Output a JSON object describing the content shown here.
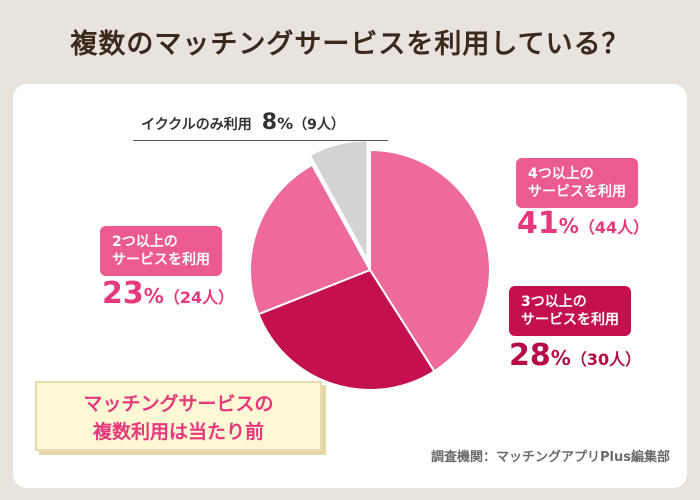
{
  "title": "複数のマッチングサービスを利用している？",
  "chart_data": {
    "type": "pie",
    "slices": [
      {
        "label_line1": "4つ以上の",
        "label_line2": "サービスを利用",
        "value": 41,
        "count": 44,
        "color": "#ee6a9b"
      },
      {
        "label_line1": "3つ以上の",
        "label_line2": "サービスを利用",
        "value": 28,
        "count": 30,
        "color": "#c4104e"
      },
      {
        "label_line1": "2つ以上の",
        "label_line2": "サービスを利用",
        "value": 23,
        "count": 24,
        "color": "#ee6a9b"
      },
      {
        "label": "イククルのみ利用",
        "value": 8,
        "count": 9,
        "color": "#d3d3d3",
        "exploded": true
      }
    ],
    "percent_suffix": "%",
    "count_prefix": "（",
    "count_suffix": "人）"
  },
  "callout": {
    "line1": "マッチングサービスの",
    "line2": "複数利用は当たり前"
  },
  "source": "調査機関：マッチングアプリPlus編集部"
}
